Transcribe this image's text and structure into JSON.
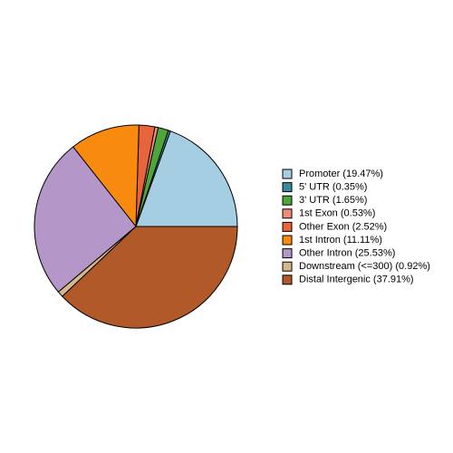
{
  "chart_data": {
    "type": "pie",
    "categories": [
      "Promoter (19.47%)",
      "5' UTR (0.35%)",
      "3' UTR (1.65%)",
      "1st Exon (0.53%)",
      "Other Exon (2.52%)",
      "1st Intron (11.11%)",
      "Other Intron (25.53%)",
      "Downstream (<=300) (0.92%)",
      "Distal Intergenic (37.91%)"
    ],
    "values": [
      19.47,
      0.35,
      1.65,
      0.53,
      2.52,
      11.11,
      25.53,
      0.92,
      37.91
    ],
    "colors": [
      "#a6cee3",
      "#3a8a9c",
      "#4da63a",
      "#f08a7a",
      "#e8643c",
      "#f88b0f",
      "#b496c8",
      "#d6b98a",
      "#b15928"
    ],
    "legend": "right"
  }
}
